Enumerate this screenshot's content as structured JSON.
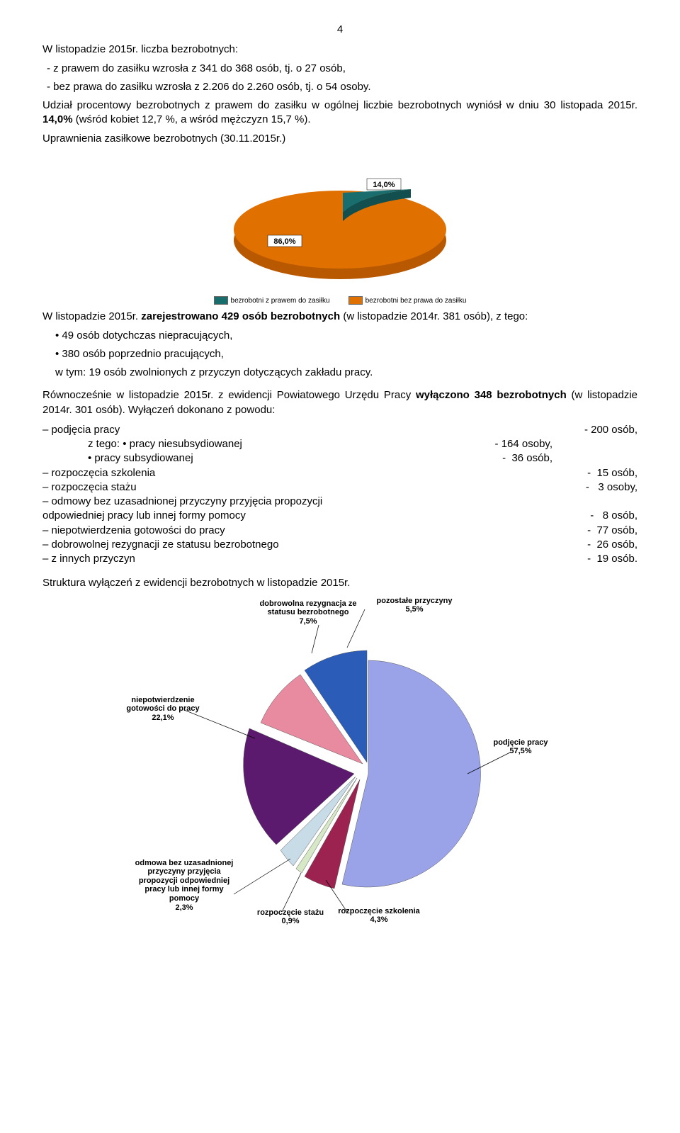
{
  "page_number": "4",
  "intro": {
    "line1": "W listopadzie 2015r. liczba bezrobotnych:",
    "item1": "-   z prawem do zasiłku wzrosła z 341 do 368 osób, tj. o 27 osób,",
    "item2": "-   bez prawa do zasiłku wzrosła z 2.206 do 2.260 osób, tj. o 54 osoby."
  },
  "para2_a": "Udział procentowy bezrobotnych z prawem do zasiłku w ogólnej liczbie bezrobotnych wyniósł w dniu 30 listopada 2015r. ",
  "para2_b": "14,0%",
  "para2_c": " (wśród kobiet 12,7 %, a wśród mężczyzn 15,7 %).",
  "chart1": {
    "title": "Uprawnienia zasiłkowe bezrobotnych (30.11.2015r.)",
    "slices": [
      {
        "label": "14,0%",
        "color": "#1a6d6d"
      },
      {
        "label": "86,0%",
        "color": "#e07000"
      }
    ],
    "legend": [
      {
        "text": "bezrobotni z prawem do zasiłku",
        "color": "#1a6d6d"
      },
      {
        "text": "bezrobotni bez prawa do zasiłku",
        "color": "#e07000"
      }
    ]
  },
  "para3_a": "W listopadzie 2015r. ",
  "para3_b": "zarejestrowano 429 osób bezrobotnych",
  "para3_c": " (w listopadzie 2014r. 381 osób), z tego:",
  "reg_items": {
    "i1": "•   49 osób dotychczas niepracujących,",
    "i2": "• 380 osób poprzednio pracujących,",
    "i3": "   w tym: 19 osób zwolnionych z przyczyn dotyczących zakładu pracy."
  },
  "para4_a": "Równocześnie w listopadzie 2015r. z ewidencji Powiatowego Urzędu Pracy ",
  "para4_b": "wyłączono 348 bezrobotnych",
  "para4_c": " (w listopadzie 2014r. 301 osób). Wyłączeń dokonano z powodu:",
  "excl": [
    {
      "label": "– podjęcia pracy",
      "val": "- 200 osób,"
    },
    {
      "label": "      z tego: • pracy niesubsydiowanej",
      "val": "- 164 osoby,"
    },
    {
      "label": "                 • pracy subsydiowanej",
      "val": "-  36 osób,"
    },
    {
      "label": "– rozpoczęcia szkolenia",
      "val": "-  15 osób,"
    },
    {
      "label": "– rozpoczęcia stażu",
      "val": "-   3 osoby,"
    },
    {
      "label": "– odmowy bez uzasadnionej przyczyny przyjęcia propozycji",
      "val": ""
    },
    {
      "label": "   odpowiedniej pracy lub innej formy pomocy",
      "val": "-   8 osób,"
    },
    {
      "label": "– niepotwierdzenia gotowości do pracy",
      "val": "-  77 osób,"
    },
    {
      "label": "– dobrowolnej rezygnacji ze statusu bezrobotnego",
      "val": "-  26 osób,"
    },
    {
      "label": "– z innych przyczyn",
      "val": "-  19 osób."
    }
  ],
  "chart2": {
    "title": "Struktura wyłączeń z ewidencji bezrobotnych w listopadzie 2015r.",
    "slices": [
      {
        "name": "podjęcie pracy",
        "pct": "57,5%",
        "color": "#9aa3e8"
      },
      {
        "name": "rozpoczęcie szkolenia",
        "pct": "4,3%",
        "color": "#9c2350"
      },
      {
        "name": "rozpoczęcie stażu",
        "pct": "0,9%",
        "color": "#d6e8c6"
      },
      {
        "name": "odmowa bez uzasadnionej przyczyny przyjęcia propozycji odpowiedniej pracy lub innej formy pomocy",
        "pct": "2,3%",
        "color": "#c8dce8"
      },
      {
        "name": "niepotwierdzenie gotowości do pracy",
        "pct": "22,1%",
        "color": "#5c1a6e"
      },
      {
        "name": "dobrowolna rezygnacja ze statusu bezrobotnego",
        "pct": "7,5%",
        "color": "#e88aa0"
      },
      {
        "name": "pozostałe przyczyny",
        "pct": "5,5%",
        "color": "#2a5cb8"
      }
    ],
    "callouts": {
      "c_rezygn": "dobrowolna rezygnacja ze\nstatusu bezrobotnego\n7,5%",
      "c_pozost": "pozostałe przyczyny\n5,5%",
      "c_niepot": "niepotwierdzenie\ngotowości do pracy\n22,1%",
      "c_podj": "podjęcie pracy\n57,5%",
      "c_odmowa": "odmowa bez uzasadnionej\nprzyczyny przyjęcia\npropozycji odpowiedniej\npracy lub innej formy\npomocy\n2,3%",
      "c_staz": "rozpoczęcie stażu\n0,9%",
      "c_szkol": "rozpoczęcie szkolenia\n4,3%"
    }
  }
}
